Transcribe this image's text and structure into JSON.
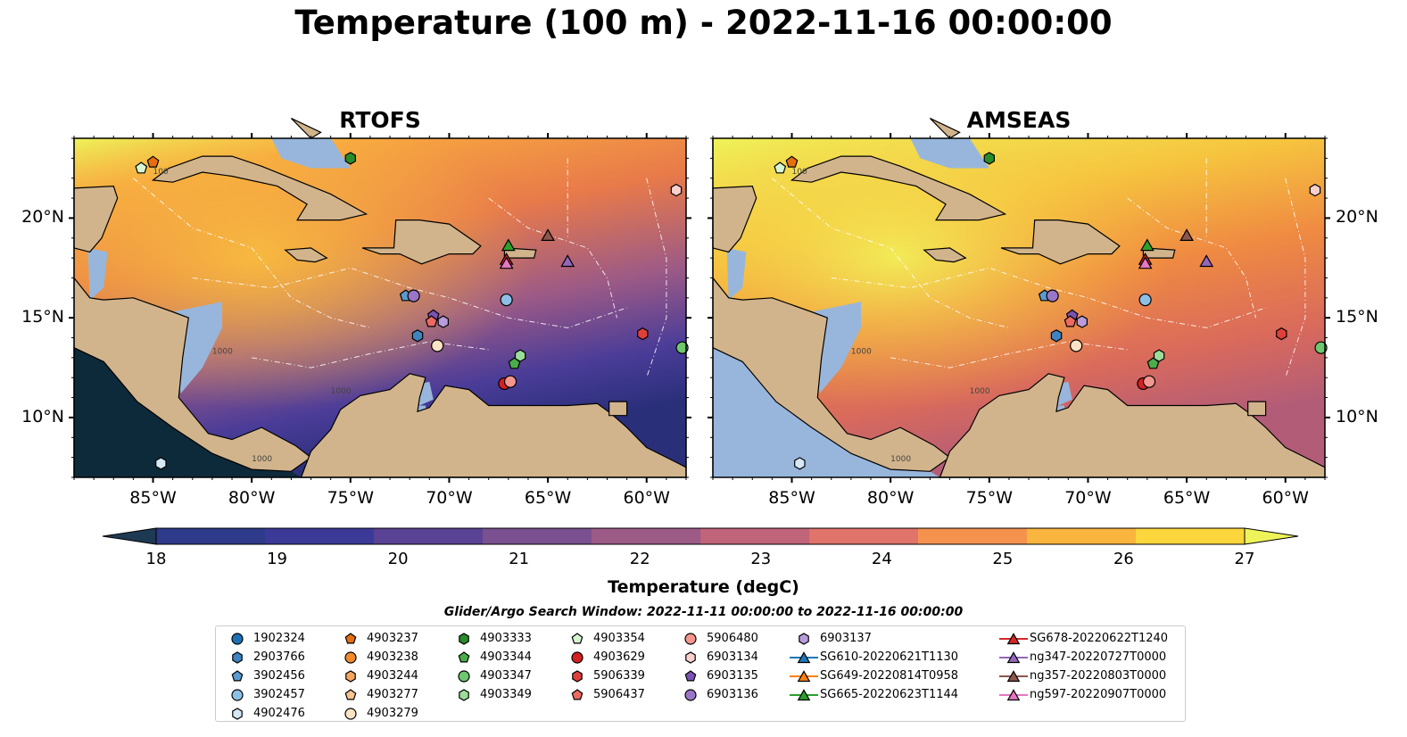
{
  "title": "Temperature (100 m) - 2022-11-16 00:00:00",
  "panels": [
    {
      "id": "rtofs",
      "title": "RTOFS"
    },
    {
      "id": "amseas",
      "title": "AMSEAS"
    }
  ],
  "map_extent": {
    "lon_min": -89,
    "lon_max": -58,
    "lat_min": 7,
    "lat_max": 24
  },
  "axes": {
    "lon_ticks": [
      "85°W",
      "80°W",
      "75°W",
      "70°W",
      "65°W",
      "60°W"
    ],
    "lat_ticks": [
      "20°N",
      "15°N",
      "10°N"
    ]
  },
  "colorbar": {
    "label": "Temperature (degC)",
    "ticks": [
      "18",
      "19",
      "20",
      "21",
      "22",
      "23",
      "24",
      "25",
      "26",
      "27"
    ],
    "range": [
      18,
      27
    ],
    "colors": [
      "#1e3a52",
      "#2e3a8a",
      "#3c3a98",
      "#5a4294",
      "#7a5090",
      "#9c5a86",
      "#c0647a",
      "#e0736a",
      "#f5924e",
      "#f9b53e",
      "#fbd63c",
      "#eef35a"
    ]
  },
  "contour_labels": [
    "100",
    "1000"
  ],
  "legend": {
    "title": "Glider/Argo Search Window: 2022-11-11 00:00:00 to 2022-11-16 00:00:00",
    "columns": [
      [
        {
          "label": "1902324",
          "marker": "circle",
          "color": "#1f6fb4"
        },
        {
          "label": "2903766",
          "marker": "hexagon",
          "color": "#3f84c0"
        },
        {
          "label": "3902456",
          "marker": "pentagon",
          "color": "#5a9bd0"
        },
        {
          "label": "3902457",
          "marker": "circle",
          "color": "#8dc0e6"
        },
        {
          "label": "4902476",
          "marker": "hexagon",
          "color": "#d4e8f6"
        }
      ],
      [
        {
          "label": "4903237",
          "marker": "pentagon",
          "color": "#e6700f"
        },
        {
          "label": "4903238",
          "marker": "circle",
          "color": "#f48a2e"
        },
        {
          "label": "4903244",
          "marker": "hexagon",
          "color": "#f7a660"
        },
        {
          "label": "4903277",
          "marker": "pentagon",
          "color": "#fac48f"
        },
        {
          "label": "4903279",
          "marker": "circle",
          "color": "#fde3c6"
        }
      ],
      [
        {
          "label": "4903333",
          "marker": "hexagon",
          "color": "#2a8b2a"
        },
        {
          "label": "4903344",
          "marker": "pentagon",
          "color": "#4aac4a"
        },
        {
          "label": "4903347",
          "marker": "circle",
          "color": "#6fc76f"
        },
        {
          "label": "4903349",
          "marker": "hexagon",
          "color": "#9bdc9b"
        }
      ],
      [
        {
          "label": "4903354",
          "marker": "pentagon",
          "color": "#d6f5d0"
        },
        {
          "label": "4903629",
          "marker": "circle",
          "color": "#d32020"
        },
        {
          "label": "5906339",
          "marker": "hexagon",
          "color": "#e0403a"
        },
        {
          "label": "5906437",
          "marker": "pentagon",
          "color": "#ec6a62"
        }
      ],
      [
        {
          "label": "5906480",
          "marker": "circle",
          "color": "#f4968f"
        },
        {
          "label": "6903134",
          "marker": "hexagon",
          "color": "#fbd0cc"
        },
        {
          "label": "6903135",
          "marker": "pentagon",
          "color": "#7a52b4"
        },
        {
          "label": "6903136",
          "marker": "circle",
          "color": "#9a76c8"
        }
      ],
      [
        {
          "label": "6903137",
          "marker": "hexagon",
          "color": "#b89cdc"
        },
        {
          "label": "SG610-20220621T1130",
          "marker": "triangle-line",
          "color": "#1f77b4"
        },
        {
          "label": "SG649-20220814T0958",
          "marker": "triangle-line",
          "color": "#ff7f0e"
        },
        {
          "label": "SG665-20220623T1144",
          "marker": "triangle-line",
          "color": "#2ca02c"
        }
      ],
      [
        {
          "label": "SG678-20220622T1240",
          "marker": "triangle-line",
          "color": "#d62728"
        },
        {
          "label": "ng347-20220727T0000",
          "marker": "triangle-line",
          "color": "#9467bd"
        },
        {
          "label": "ng357-20220803T0000",
          "marker": "triangle-line",
          "color": "#8c564b"
        },
        {
          "label": "ng597-20220907T0000",
          "marker": "triangle-line",
          "color": "#e377c2"
        }
      ]
    ]
  },
  "map_markers": [
    {
      "label": "4903354",
      "marker": "pentagon",
      "color": "#d6f5d0",
      "lon": -85.6,
      "lat": 22.5
    },
    {
      "label": "4903237",
      "marker": "pentagon",
      "color": "#e6700f",
      "lon": -85.0,
      "lat": 22.8
    },
    {
      "label": "4903333",
      "marker": "hexagon",
      "color": "#2a8b2a",
      "lon": -75.0,
      "lat": 23.0
    },
    {
      "label": "6903134",
      "marker": "hexagon",
      "color": "#fbd0cc",
      "lon": -58.5,
      "lat": 21.4
    },
    {
      "label": "SG665-20220623T1144",
      "marker": "triangle",
      "color": "#2ca02c",
      "lon": -67.0,
      "lat": 18.6
    },
    {
      "label": "ng357-20220803T0000",
      "marker": "triangle",
      "color": "#8c564b",
      "lon": -65.0,
      "lat": 19.1
    },
    {
      "label": "SG678-20220622T1240",
      "marker": "triangle",
      "color": "#d62728",
      "lon": -67.1,
      "lat": 17.9
    },
    {
      "label": "ng597-20220907T0000",
      "marker": "triangle",
      "color": "#e377c2",
      "lon": -67.1,
      "lat": 17.7
    },
    {
      "label": "ng347-20220727T0000",
      "marker": "triangle",
      "color": "#9467bd",
      "lon": -64.0,
      "lat": 17.8
    },
    {
      "label": "3902456",
      "marker": "pentagon",
      "color": "#5a9bd0",
      "lon": -72.2,
      "lat": 16.1
    },
    {
      "label": "6903136",
      "marker": "circle",
      "color": "#9a76c8",
      "lon": -71.8,
      "lat": 16.1
    },
    {
      "label": "3902457",
      "marker": "circle",
      "color": "#8dc0e6",
      "lon": -67.1,
      "lat": 15.9
    },
    {
      "label": "6903135",
      "marker": "pentagon",
      "color": "#7a52b4",
      "lon": -70.8,
      "lat": 15.1
    },
    {
      "label": "6903137",
      "marker": "hexagon",
      "color": "#b89cdc",
      "lon": -70.3,
      "lat": 14.8
    },
    {
      "label": "5906437",
      "marker": "pentagon",
      "color": "#ec6a62",
      "lon": -70.9,
      "lat": 14.8
    },
    {
      "label": "2903766",
      "marker": "hexagon",
      "color": "#3f84c0",
      "lon": -71.6,
      "lat": 14.1
    },
    {
      "label": "4903279",
      "marker": "circle",
      "color": "#fde3c6",
      "lon": -70.6,
      "lat": 13.6
    },
    {
      "label": "5906339",
      "marker": "hexagon",
      "color": "#e0403a",
      "lon": -60.2,
      "lat": 14.2
    },
    {
      "label": "4903347",
      "marker": "circle",
      "color": "#6fc76f",
      "lon": -58.2,
      "lat": 13.5
    },
    {
      "label": "4903349",
      "marker": "hexagon",
      "color": "#9bdc9b",
      "lon": -66.4,
      "lat": 13.1
    },
    {
      "label": "4903344",
      "marker": "pentagon",
      "color": "#4aac4a",
      "lon": -66.7,
      "lat": 12.7
    },
    {
      "label": "4903629",
      "marker": "circle",
      "color": "#d32020",
      "lon": -67.2,
      "lat": 11.7
    },
    {
      "label": "5906480",
      "marker": "circle",
      "color": "#f4968f",
      "lon": -66.9,
      "lat": 11.8
    },
    {
      "label": "4902476",
      "marker": "hexagon",
      "color": "#d4e8f6",
      "lon": -84.6,
      "lat": 7.7
    }
  ]
}
